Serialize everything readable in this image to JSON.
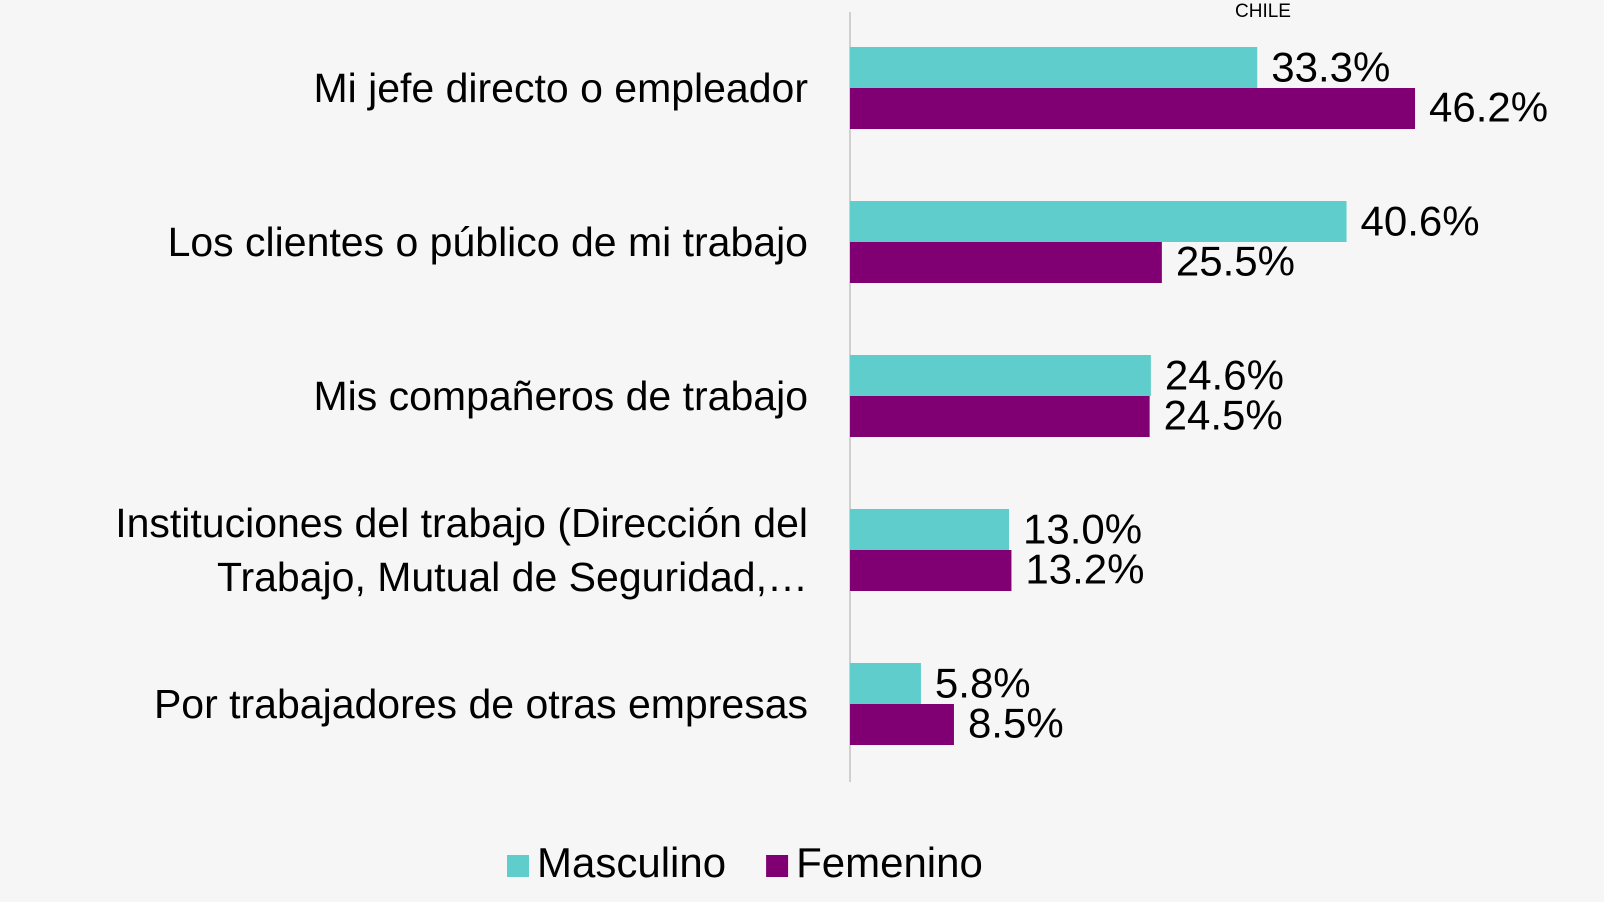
{
  "chart_data": {
    "type": "hbar",
    "annotation": "CHILE",
    "categories": [
      "Mi jefe directo o empleador",
      "Los clientes o público de mi trabajo",
      "Mis compañeros de trabajo",
      "Instituciones del trabajo (Dirección del Trabajo, Mutual de Seguridad,…",
      "Por trabajadores de otras empresas"
    ],
    "series": [
      {
        "name": "Masculino",
        "color": "#5ecdcb",
        "values": [
          33.3,
          40.6,
          24.6,
          13.0,
          5.8
        ],
        "value_labels": [
          "33.3%",
          "40.6%",
          "24.6%",
          "13.0%",
          "5.8%"
        ]
      },
      {
        "name": "Femenino",
        "color": "#800073",
        "values": [
          46.2,
          25.5,
          24.5,
          13.2,
          8.5
        ],
        "value_labels": [
          "46.2%",
          "25.5%",
          "24.5%",
          "13.2%",
          "8.5%"
        ]
      }
    ],
    "xlim": [
      0,
      50
    ],
    "legend": "bottom"
  }
}
